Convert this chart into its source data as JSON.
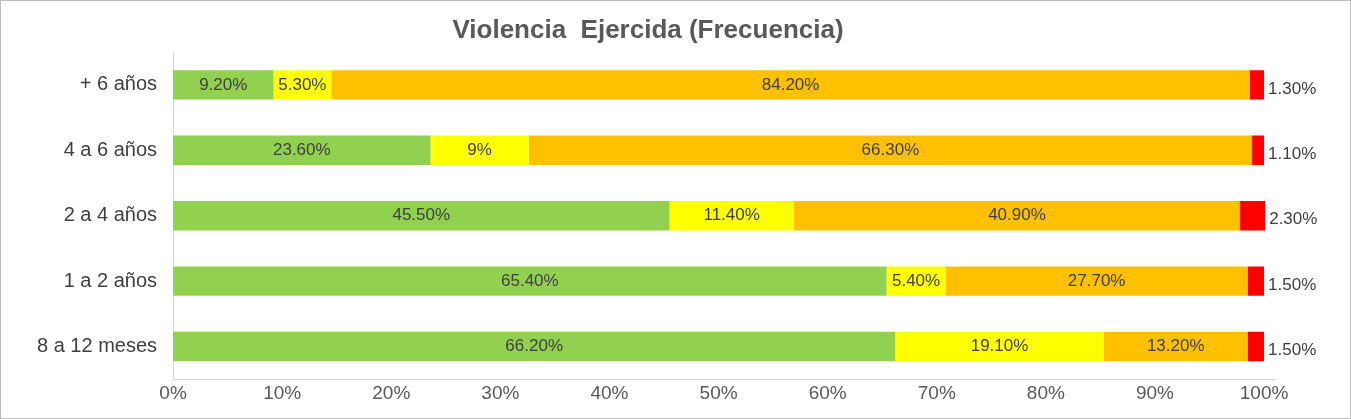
{
  "chart_data": {
    "type": "bar",
    "orientation": "horizontal",
    "stacked": true,
    "title": "Violencia  Ejercida (Frecuencia)",
    "categories": [
      "+ 6 años",
      "4 a 6 años",
      "2 a 4 años",
      "1 a 2 años",
      "8 a 12 meses"
    ],
    "series": [
      {
        "color": "#92d050",
        "values": [
          9.2,
          23.6,
          45.5,
          65.4,
          66.2
        ],
        "value_labels": [
          "9.20%",
          "23.60%",
          "45.50%",
          "65.40%",
          "66.20%"
        ]
      },
      {
        "color": "#ffff00",
        "values": [
          5.3,
          9,
          11.4,
          5.4,
          19.1
        ],
        "value_labels": [
          "5.30%",
          "9%",
          "11.40%",
          "5.40%",
          "19.10%"
        ]
      },
      {
        "color": "#ffc000",
        "values": [
          84.2,
          66.3,
          40.9,
          27.7,
          13.2
        ],
        "value_labels": [
          "84.20%",
          "66.30%",
          "40.90%",
          "27.70%",
          "13.20%"
        ]
      },
      {
        "color": "#ff0000",
        "values": [
          1.3,
          1.1,
          2.3,
          1.5,
          1.5
        ],
        "value_labels": [
          "1.30%",
          "1.10%",
          "2.30%",
          "1.50%",
          "1.50%"
        ]
      }
    ],
    "xlim": [
      0,
      101
    ],
    "xticks": [
      {
        "value": 0,
        "label": "0%"
      },
      {
        "value": 10,
        "label": "10%"
      },
      {
        "value": 20,
        "label": "20%"
      },
      {
        "value": 30,
        "label": "30%"
      },
      {
        "value": 40,
        "label": "40%"
      },
      {
        "value": 50,
        "label": "50%"
      },
      {
        "value": 60,
        "label": "60%"
      },
      {
        "value": 70,
        "label": "70%"
      },
      {
        "value": 80,
        "label": "80%"
      },
      {
        "value": 90,
        "label": "90%"
      },
      {
        "value": 100,
        "label": "100%"
      }
    ],
    "grid": false,
    "legend": false
  }
}
